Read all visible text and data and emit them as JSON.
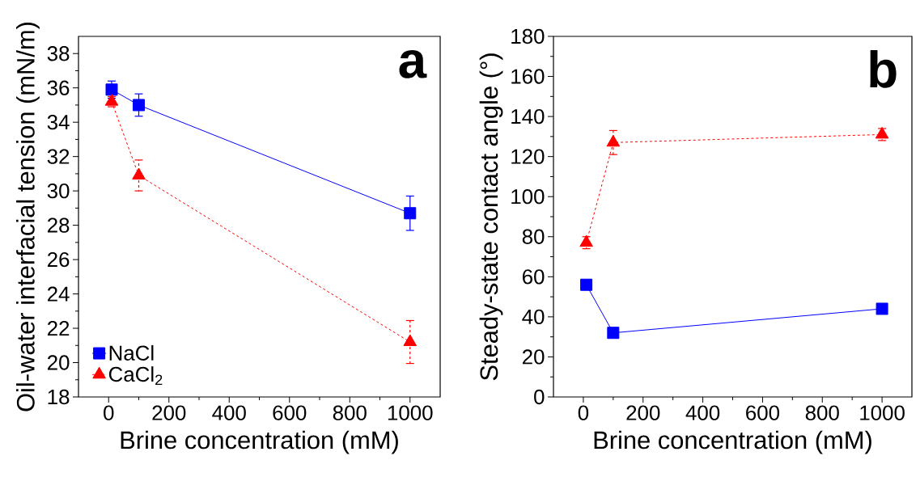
{
  "chart_data": [
    {
      "type": "line",
      "xlabel": "Brine concentration (mM)",
      "ylabel": "Oil-water interfacial tension (mN/m)",
      "x": [
        10,
        100,
        1000
      ],
      "xlim": [
        -100,
        1100
      ],
      "xticks": [
        0,
        200,
        400,
        600,
        800,
        1000
      ],
      "ylim": [
        18,
        39
      ],
      "yticks": [
        18,
        20,
        22,
        24,
        26,
        28,
        30,
        32,
        34,
        36,
        38
      ],
      "legend": "bottom left",
      "annotations": [
        "a"
      ],
      "series": [
        {
          "name": "NaCl",
          "color": "#0000ff",
          "values": [
            35.9,
            35.0,
            28.7
          ],
          "errors": [
            0.5,
            0.65,
            1.0
          ],
          "marker": "square",
          "line_style": "solid"
        },
        {
          "name": "CaCl$_{2}$",
          "color": "#ff0000",
          "values": [
            35.2,
            30.9,
            21.2
          ],
          "errors": [
            0.3,
            0.9,
            1.25
          ],
          "marker": "triangle",
          "line_style": "dashed"
        }
      ]
    },
    {
      "type": "line",
      "xlabel": "Brine concentration (mM)",
      "ylabel": "Steady-state contact angle (°)",
      "x": [
        10,
        100,
        1000
      ],
      "xlim": [
        -100,
        1100
      ],
      "xticks": [
        0,
        200,
        400,
        600,
        800,
        1000
      ],
      "ylim": [
        0,
        180
      ],
      "yticks": [
        0,
        20,
        40,
        60,
        80,
        100,
        120,
        140,
        160,
        180
      ],
      "annotations": [
        "b"
      ],
      "series": [
        {
          "color": "#0000ff",
          "values": [
            56,
            32,
            44
          ],
          "errors": [
            2,
            2,
            2
          ],
          "marker": "square",
          "line_style": "solid"
        },
        {
          "color": "#ff0000",
          "values": [
            77,
            127,
            131
          ],
          "errors": [
            3,
            6,
            3
          ],
          "marker": "triangle",
          "line_style": "dashed"
        }
      ]
    }
  ]
}
